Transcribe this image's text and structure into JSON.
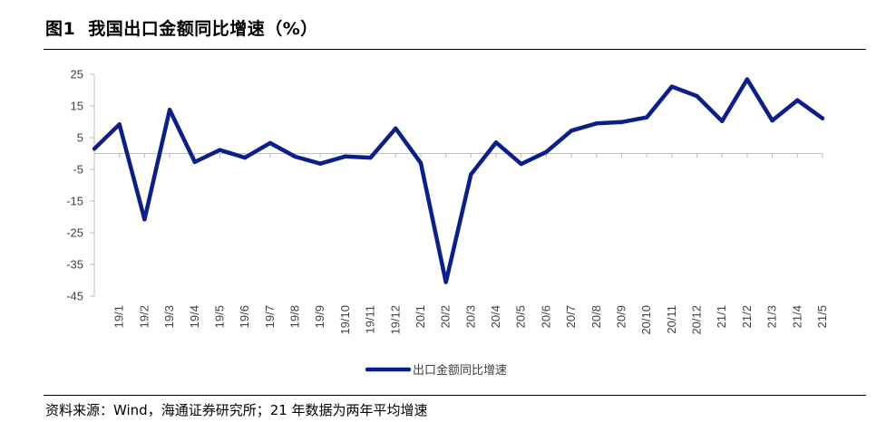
{
  "figure": {
    "number": "图1",
    "title": "我国出口金额同比增速（%）",
    "source": "资料来源：Wind，海通证券研究所；21 年数据为两年平均增速"
  },
  "chart_data": {
    "type": "line",
    "title": "我国出口金额同比增速（%）",
    "categories": [
      "19/1",
      "19/2",
      "19/3",
      "19/4",
      "19/5",
      "19/6",
      "19/7",
      "19/8",
      "19/9",
      "19/10",
      "19/11",
      "19/12",
      "20/1",
      "20/2",
      "20/3",
      "20/4",
      "20/5",
      "20/6",
      "20/7",
      "20/8",
      "20/9",
      "20/10",
      "20/11",
      "20/12",
      "21/1",
      "21/2",
      "21/3",
      "21/4",
      "21/5"
    ],
    "series": [
      {
        "name": "出口金额同比增速",
        "color": "#0a1e8c",
        "values": [
          9.2,
          -20.8,
          13.8,
          -2.7,
          1.1,
          -1.3,
          3.3,
          -1.0,
          -3.2,
          -0.9,
          -1.3,
          7.9,
          -3.0,
          -40.6,
          -6.6,
          3.5,
          -3.3,
          0.5,
          7.2,
          9.5,
          9.9,
          11.4,
          21.1,
          18.1,
          10.2,
          23.4,
          10.4,
          16.8,
          11.1
        ],
        "first_point": 1.5
      }
    ],
    "ylim": [
      -45,
      25
    ],
    "yticks": [
      "25",
      "15",
      "5",
      "-5",
      "-15",
      "-25",
      "-35",
      "-45"
    ],
    "legend": "bottom-center",
    "grid": false
  }
}
